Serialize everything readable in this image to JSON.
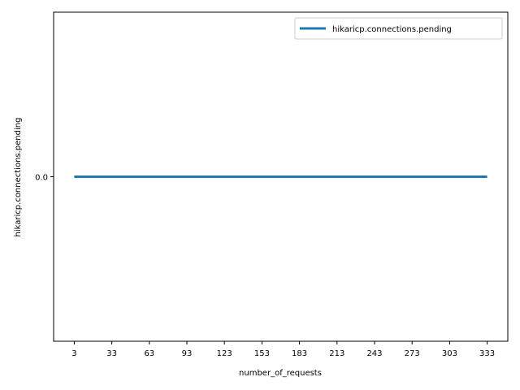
{
  "chart_data": {
    "type": "line",
    "xlabel": "number_of_requests",
    "ylabel": "hikaricp.connections.pending",
    "x": [
      3,
      33,
      63,
      93,
      123,
      153,
      183,
      213,
      243,
      273,
      303,
      333
    ],
    "x_tick_labels": [
      "3",
      "33",
      "63",
      "93",
      "123",
      "153",
      "183",
      "213",
      "243",
      "273",
      "303",
      "333"
    ],
    "y_tick_labels": [
      "0.0"
    ],
    "y_ticks": [
      0.0
    ],
    "ylim": [
      -0.055,
      0.055
    ],
    "series": [
      {
        "name": "hikaricp.connections.pending",
        "values": [
          0,
          0,
          0,
          0,
          0,
          0,
          0,
          0,
          0,
          0,
          0,
          0
        ],
        "color": "#1f77b4"
      }
    ],
    "legend_position": "upper right",
    "grid": false
  }
}
